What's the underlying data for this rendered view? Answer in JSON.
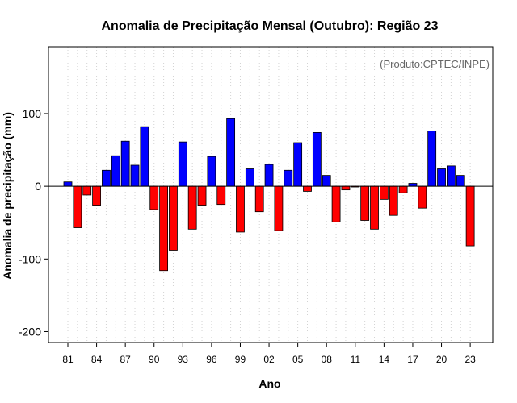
{
  "chart_data": {
    "type": "bar",
    "title": "Anomalia de Precipitação Mensal (Outubro): Região 23",
    "xlabel": "Ano",
    "ylabel": "Anomalia de precipitação (mm)",
    "credit": "(Produto:CPTEC/INPE)",
    "ylim": [
      -215,
      192
    ],
    "yticks": [
      -200,
      -100,
      0,
      100
    ],
    "grid": "vertical dotted",
    "years": [
      1981,
      1982,
      1983,
      1984,
      1985,
      1986,
      1987,
      1988,
      1989,
      1990,
      1991,
      1992,
      1993,
      1994,
      1995,
      1996,
      1997,
      1998,
      1999,
      2000,
      2001,
      2002,
      2003,
      2004,
      2005,
      2006,
      2007,
      2008,
      2009,
      2010,
      2011,
      2012,
      2013,
      2014,
      2015,
      2016,
      2017,
      2018,
      2019,
      2020,
      2021,
      2022,
      2023
    ],
    "values": [
      6,
      -57,
      -12,
      -26,
      22,
      42,
      62,
      29,
      82,
      -32,
      -116,
      -88,
      61,
      -59,
      -26,
      41,
      -25,
      93,
      -63,
      24,
      -35,
      30,
      -61,
      22,
      60,
      -7,
      74,
      15,
      -49,
      -5,
      -1,
      -47,
      -59,
      -18,
      -40,
      -9,
      4,
      -30,
      76,
      24,
      28,
      15,
      -82
    ],
    "xtick_labels": [
      {
        "year": 1981,
        "label": "81"
      },
      {
        "year": 1984,
        "label": "84"
      },
      {
        "year": 1987,
        "label": "87"
      },
      {
        "year": 1990,
        "label": "90"
      },
      {
        "year": 1993,
        "label": "93"
      },
      {
        "year": 1996,
        "label": "96"
      },
      {
        "year": 1999,
        "label": "99"
      },
      {
        "year": 2002,
        "label": "02"
      },
      {
        "year": 2005,
        "label": "05"
      },
      {
        "year": 2008,
        "label": "08"
      },
      {
        "year": 2011,
        "label": "11"
      },
      {
        "year": 2014,
        "label": "14"
      },
      {
        "year": 2017,
        "label": "17"
      },
      {
        "year": 2020,
        "label": "20"
      },
      {
        "year": 2023,
        "label": "23"
      }
    ],
    "colors": {
      "positive": "#0000ff",
      "negative": "#ff0000",
      "outline": "#000000",
      "grid": "#d3d3d3"
    }
  }
}
